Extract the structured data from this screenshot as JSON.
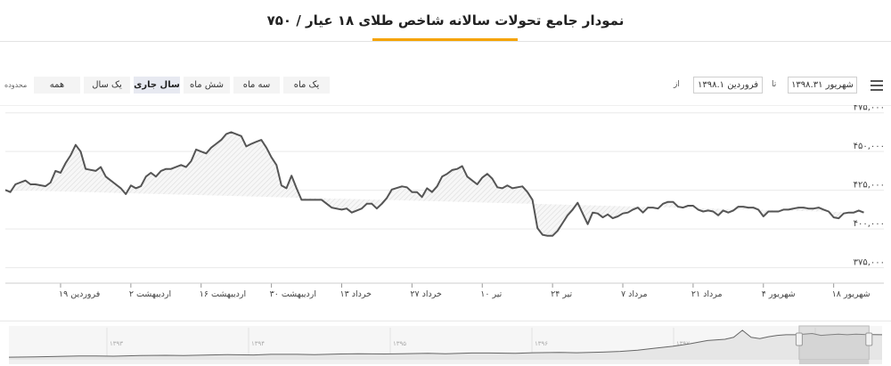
{
  "title": "نمودار جامع تحولات سالانه شاخص طلای ۱۸ عیار / ۷۵۰",
  "toolbar": {
    "zoom_label": "محدوده",
    "buttons": [
      "همه",
      "یک سال",
      "سال جاری",
      "شش ماه",
      "سه ماه",
      "یک ماه"
    ],
    "active_button": "سال جاری",
    "from_label": "از",
    "to_label": "تا",
    "from_date": "فروردین ۱۳۹۸.۱",
    "to_date": "شهریور ۱۳۹۸.۳۱"
  },
  "navigator": {
    "year_labels": [
      "۱۳۹۳",
      "۱۳۹۴",
      "۱۳۹۵",
      "۱۳۹۶",
      "۱۳۹۷",
      "۱۳۹۸"
    ]
  },
  "chart_data": {
    "type": "area",
    "title": "نمودار جامع تحولات سالانه شاخص طلای ۱۸ عیار / ۷۵۰",
    "xlabel": "",
    "ylabel": "",
    "y_ticks": [
      "۴۷۵,۰۰۰",
      "۴۵۰,۰۰۰",
      "۴۲۵,۰۰۰",
      "۴۰۰,۰۰۰",
      "۳۷۵,۰۰۰"
    ],
    "y_tick_values": [
      475000,
      450000,
      425000,
      400000,
      375000
    ],
    "ylim": [
      365000,
      480000
    ],
    "x_tick_labels": [
      "فروردین ۱۹",
      "اردیبهشت ۲",
      "اردیبهشت ۱۶",
      "اردیبهشت ۳۰",
      "خرداد ۱۳",
      "خرداد ۲۷",
      "تیر ۱۰",
      "تیر ۲۴",
      "مرداد ۷",
      "مرداد ۲۱",
      "شهریور ۴",
      "شهریور ۱۸"
    ],
    "x_tick_days": [
      19,
      33,
      47,
      61,
      75,
      89,
      103,
      117,
      131,
      145,
      159,
      173
    ],
    "x_range_days": [
      8,
      183
    ],
    "grid": true,
    "series": [
      {
        "day": [
          8,
          9,
          10,
          12,
          13,
          14,
          16,
          17,
          18,
          19,
          20,
          21,
          22,
          23,
          24,
          26,
          27,
          28,
          29,
          31,
          32,
          33,
          34,
          35,
          36,
          37,
          38,
          39,
          40,
          41,
          43,
          44,
          45,
          46,
          47,
          48,
          49,
          50,
          51,
          52,
          53,
          55,
          56,
          57,
          58,
          59,
          60,
          61,
          62,
          63,
          64,
          65,
          66,
          67,
          69,
          71,
          73,
          75,
          76,
          77,
          78,
          79,
          80,
          81,
          82,
          83,
          84,
          85,
          87,
          88,
          89,
          90,
          91,
          92,
          93,
          94,
          95,
          96,
          97,
          98,
          99,
          100,
          101,
          102,
          103,
          104,
          105,
          106,
          107,
          108,
          109,
          110,
          111,
          112,
          113,
          114,
          115,
          116,
          117,
          118,
          119,
          120,
          121,
          122,
          123,
          124,
          125,
          126,
          127,
          128,
          129,
          130,
          131,
          132,
          133,
          134,
          135,
          136,
          137,
          138,
          139,
          140,
          141,
          142,
          143,
          144,
          145,
          146,
          147,
          148,
          149,
          150,
          151,
          152,
          153,
          154,
          155,
          156,
          157,
          158,
          159,
          160,
          161,
          162,
          163,
          164,
          165,
          166,
          167,
          168,
          169,
          170,
          171,
          172,
          173,
          174,
          175,
          176,
          177,
          178,
          179,
          180,
          181,
          182,
          183
        ],
        "value": [
          425200,
          423800,
          428800,
          431300,
          428800,
          428800,
          427600,
          430000,
          437500,
          436300,
          442500,
          447500,
          454300,
          450000,
          438800,
          437500,
          440000,
          433800,
          431300,
          426300,
          422500,
          428100,
          426300,
          427600,
          433800,
          436300,
          433800,
          437500,
          438800,
          438800,
          441300,
          440000,
          443800,
          451300,
          450000,
          448800,
          452500,
          455000,
          457500,
          461300,
          462500,
          460000,
          453300,
          455000,
          456300,
          457500,
          452500,
          446300,
          441300,
          428100,
          426300,
          434400,
          426300,
          418800,
          418800,
          418800,
          413800,
          412500,
          413200,
          410600,
          411900,
          413200,
          416300,
          416300,
          413200,
          416300,
          420000,
          425500,
          427500,
          426900,
          423800,
          423800,
          420600,
          426300,
          423800,
          427500,
          433800,
          435600,
          438100,
          438800,
          440600,
          433800,
          431300,
          428800,
          433200,
          435600,
          432500,
          426900,
          426300,
          428100,
          426300,
          426900,
          427500,
          423800,
          418800,
          400600,
          396300,
          395600,
          395600,
          398800,
          403800,
          408800,
          412500,
          416900,
          410000,
          403100,
          410600,
          410000,
          407500,
          409400,
          406900,
          408100,
          410000,
          410600,
          412500,
          413800,
          410600,
          413800,
          413800,
          413200,
          416300,
          417500,
          417500,
          414400,
          413800,
          415000,
          415000,
          412500,
          411300,
          411900,
          411300,
          408800,
          411900,
          410600,
          411900,
          414400,
          414400,
          413800,
          413800,
          412500,
          408100,
          411300,
          411300,
          411300,
          412500,
          412500,
          413200,
          413800,
          413800,
          413200,
          413200,
          413800,
          412500,
          411300,
          407500,
          406900,
          410000,
          410600,
          410600,
          411900,
          410600
        ]
      }
    ],
    "navigator_series": {
      "fraction": [
        0.0,
        0.03,
        0.05,
        0.08,
        0.1,
        0.12,
        0.15,
        0.18,
        0.2,
        0.23,
        0.25,
        0.28,
        0.3,
        0.33,
        0.35,
        0.38,
        0.4,
        0.43,
        0.45,
        0.48,
        0.5,
        0.53,
        0.55,
        0.58,
        0.6,
        0.63,
        0.65,
        0.68,
        0.7,
        0.72,
        0.74,
        0.76,
        0.78,
        0.8,
        0.82,
        0.83,
        0.84,
        0.85,
        0.86,
        0.87,
        0.88,
        0.89,
        0.9,
        0.91,
        0.92,
        0.93,
        0.94,
        0.95,
        0.96,
        0.97,
        0.98,
        1.0
      ],
      "level": [
        0.08,
        0.09,
        0.1,
        0.12,
        0.12,
        0.11,
        0.13,
        0.14,
        0.13,
        0.15,
        0.16,
        0.15,
        0.17,
        0.17,
        0.16,
        0.18,
        0.19,
        0.18,
        0.19,
        0.2,
        0.19,
        0.21,
        0.21,
        0.2,
        0.22,
        0.23,
        0.22,
        0.24,
        0.26,
        0.3,
        0.36,
        0.42,
        0.5,
        0.6,
        0.64,
        0.7,
        0.92,
        0.7,
        0.66,
        0.72,
        0.76,
        0.78,
        0.78,
        0.8,
        0.82,
        0.76,
        0.78,
        0.8,
        0.78,
        0.8,
        0.79,
        0.78
      ]
    },
    "navigator_selection": [
      0.905,
      0.985
    ]
  }
}
